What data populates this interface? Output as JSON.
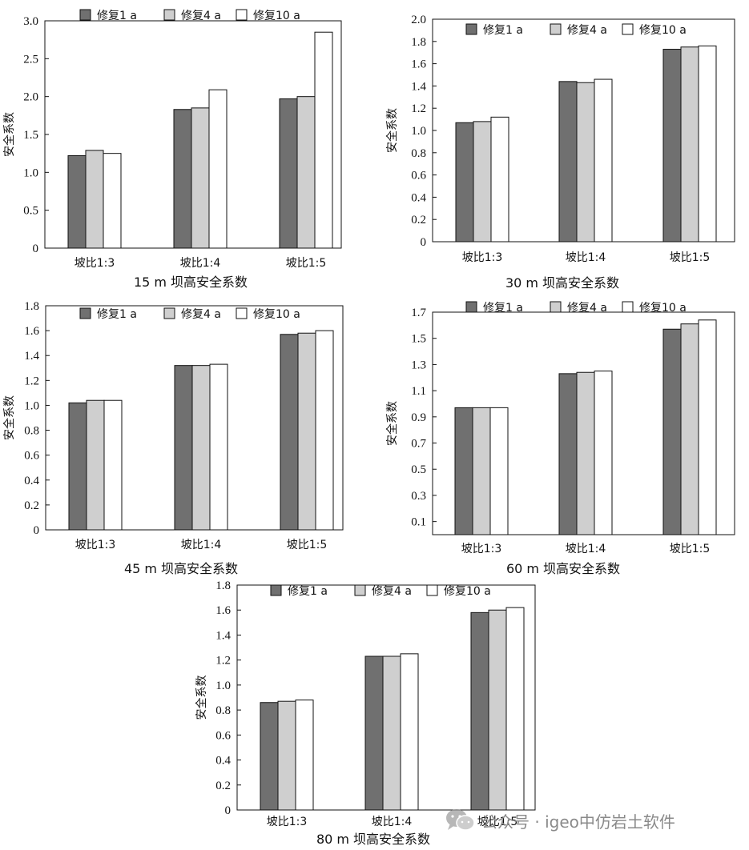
{
  "series_styles": [
    {
      "fill": "#707070"
    },
    {
      "fill": "#cfcfcf"
    },
    {
      "fill": "#ffffff"
    }
  ],
  "chart_data": [
    {
      "type": "bar",
      "categories": [
        "坡比1:3",
        "坡比1:4",
        "坡比1:5"
      ],
      "series": [
        {
          "name": "修复1 a",
          "values": [
            1.22,
            1.83,
            1.97
          ]
        },
        {
          "name": "修复4 a",
          "values": [
            1.29,
            1.85,
            2.0
          ]
        },
        {
          "name": "修复10 a",
          "values": [
            1.25,
            2.09,
            2.85
          ]
        }
      ],
      "ylabel": "安全系数",
      "yticks": [
        "0",
        "0.5",
        "1.0",
        "1.5",
        "2.0",
        "2.5",
        "3.0"
      ],
      "ylim": [
        0,
        3.0
      ],
      "caption": "15 m  坝高安全系数",
      "legend": "top"
    },
    {
      "type": "bar",
      "categories": [
        "坡比1:3",
        "坡比1:4",
        "坡比1:5"
      ],
      "series": [
        {
          "name": "修复1 a",
          "values": [
            1.07,
            1.44,
            1.73
          ]
        },
        {
          "name": "修复4 a",
          "values": [
            1.08,
            1.43,
            1.75
          ]
        },
        {
          "name": "修复10 a",
          "values": [
            1.12,
            1.46,
            1.76
          ]
        }
      ],
      "ylabel": "安全系数",
      "yticks": [
        "0",
        "0.2",
        "0.4",
        "0.6",
        "0.8",
        "1.0",
        "1.2",
        "1.4",
        "1.6",
        "1.8",
        "2.0"
      ],
      "ylim": [
        0,
        2.0
      ],
      "caption": "30 m  坝高安全系数",
      "legend": "top"
    },
    {
      "type": "bar",
      "categories": [
        "坡比1:3",
        "坡比1:4",
        "坡比1:5"
      ],
      "series": [
        {
          "name": "修复1 a",
          "values": [
            1.02,
            1.32,
            1.57
          ]
        },
        {
          "name": "修复4 a",
          "values": [
            1.04,
            1.32,
            1.58
          ]
        },
        {
          "name": "修复10 a",
          "values": [
            1.04,
            1.33,
            1.6
          ]
        }
      ],
      "ylabel": "安全系数",
      "yticks": [
        "0",
        "0.2",
        "0.4",
        "0.6",
        "0.8",
        "1.0",
        "1.2",
        "1.4",
        "1.6",
        "1.8"
      ],
      "ylim": [
        0,
        1.8
      ],
      "caption": "45 m  坝高安全系数",
      "legend": "top"
    },
    {
      "type": "bar",
      "categories": [
        "坡比1:3",
        "坡比1:4",
        "坡比1:5"
      ],
      "series": [
        {
          "name": "修复1 a",
          "values": [
            0.97,
            1.23,
            1.57
          ]
        },
        {
          "name": "修复4 a",
          "values": [
            0.97,
            1.24,
            1.61
          ]
        },
        {
          "name": "修复10 a",
          "values": [
            0.97,
            1.25,
            1.64
          ]
        }
      ],
      "ylabel": "安全系数",
      "yticks": [
        "0.1",
        "0.3",
        "0.5",
        "0.7",
        "0.9",
        "1.1",
        "1.3",
        "1.5",
        "1.7"
      ],
      "ylim": [
        0,
        1.7
      ],
      "caption": "60 m  坝高安全系数",
      "legend": "top"
    },
    {
      "type": "bar",
      "categories": [
        "坡比1:3",
        "坡比1:4",
        "坡比1:5"
      ],
      "series": [
        {
          "name": "修复1 a",
          "values": [
            0.86,
            1.23,
            1.58
          ]
        },
        {
          "name": "修复4 a",
          "values": [
            0.87,
            1.23,
            1.6
          ]
        },
        {
          "name": "修复10 a",
          "values": [
            0.88,
            1.25,
            1.62
          ]
        }
      ],
      "ylabel": "安全系数",
      "yticks": [
        "0",
        "0.2",
        "0.4",
        "0.6",
        "0.8",
        "1.0",
        "1.2",
        "1.4",
        "1.6",
        "1.8"
      ],
      "ylim": [
        0,
        1.8
      ],
      "caption": "80 m  坝高安全系数",
      "legend": "top"
    }
  ],
  "watermark": {
    "text": "公众号 · igeo中仿岩土软件",
    "icon": "wechat-icon"
  }
}
